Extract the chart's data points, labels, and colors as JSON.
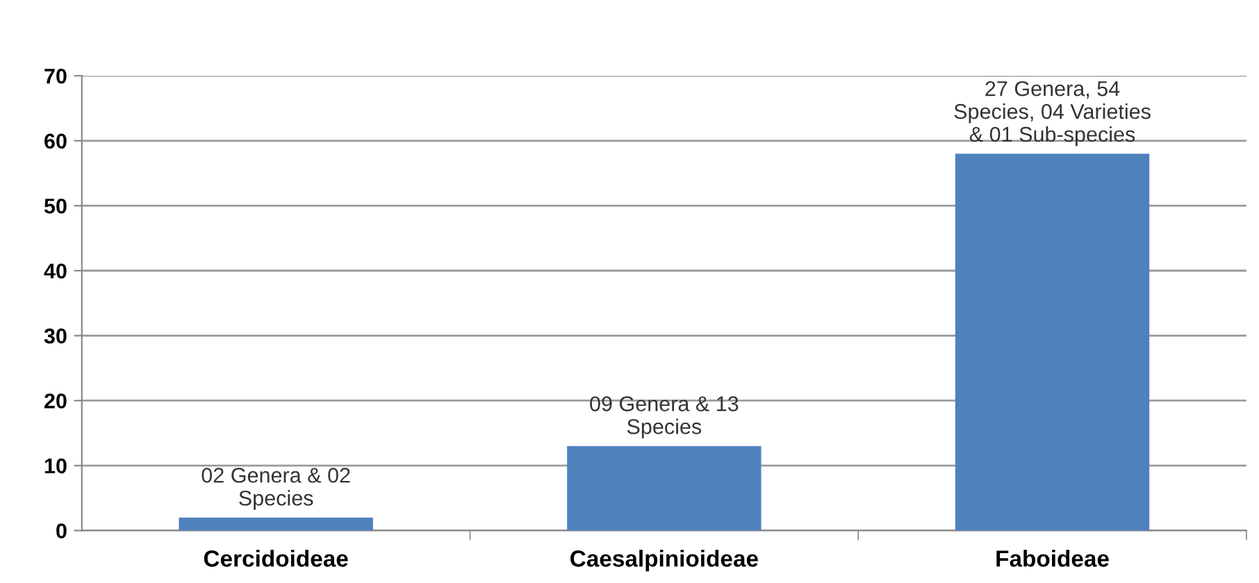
{
  "chart_data": {
    "type": "bar",
    "categories": [
      "Cercidoideae",
      "Caesalpinioideae",
      "Faboideae"
    ],
    "values": [
      2,
      13,
      58
    ],
    "color": "#4f81bd",
    "ylim": [
      0,
      70
    ],
    "yticks": [
      0,
      10,
      20,
      30,
      40,
      50,
      60,
      70
    ],
    "grid": "y",
    "annotations": [
      {
        "text": "02 Genera & 02\nSpecies",
        "x": "Cercidoideae",
        "y": 2
      },
      {
        "text": "09 Genera & 13\nSpecies",
        "x": "Caesalpinioideae",
        "y": 13
      },
      {
        "text": "27 Genera, 54\nSpecies, 04 Varieties\n& 01 Sub-species",
        "x": "Faboideae",
        "y": 58
      }
    ]
  }
}
